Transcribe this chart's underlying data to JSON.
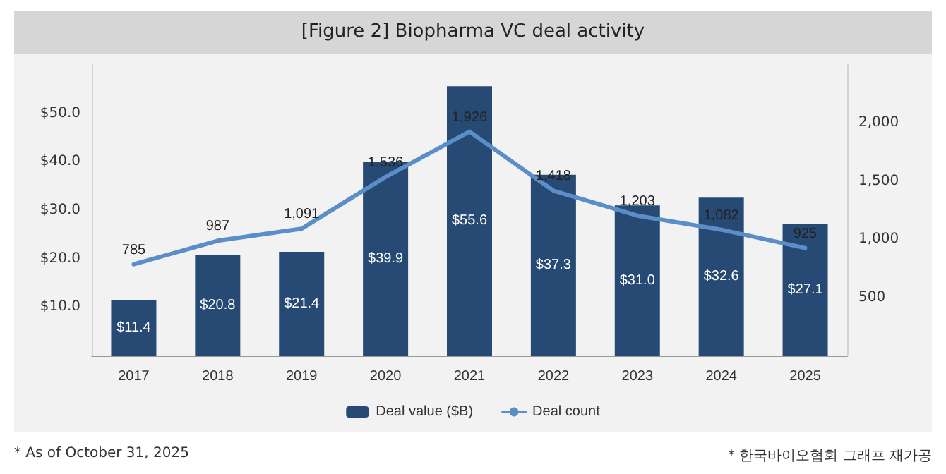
{
  "chart_data": {
    "type": "bar",
    "title": "[Figure 2] Biopharma VC deal activity",
    "categories": [
      "2017",
      "2018",
      "2019",
      "2020",
      "2021",
      "2022",
      "2023",
      "2024",
      "2025"
    ],
    "series": [
      {
        "name": "Deal value ($B)",
        "color": "#264a73",
        "values": [
          11.4,
          20.8,
          21.4,
          39.9,
          55.6,
          37.3,
          31.0,
          32.6,
          27.1
        ],
        "value_labels": [
          "$11.4",
          "$20.8",
          "$21.4",
          "$39.9",
          "$55.6",
          "$37.3",
          "$31.0",
          "$32.6",
          "$27.1"
        ]
      },
      {
        "name": "Deal count",
        "type": "line",
        "axis": "y2",
        "color": "#5b8ec8",
        "values": [
          785,
          987,
          1091,
          1536,
          1926,
          1418,
          1203,
          1082,
          925
        ],
        "value_labels": [
          "785",
          "987",
          "1,091",
          "1,536",
          "1,926",
          "1,418",
          "1,203",
          "1,082",
          "925"
        ]
      }
    ],
    "ylim": [
      0,
      60
    ],
    "yticks": [
      {
        "value": 10,
        "label": "$10.0"
      },
      {
        "value": 20,
        "label": "$20.0"
      },
      {
        "value": 30,
        "label": "$30.0"
      },
      {
        "value": 40,
        "label": "$40.0"
      },
      {
        "value": 50,
        "label": "$50.0"
      }
    ],
    "y2lim": [
      0,
      2500
    ],
    "y2ticks": [
      500,
      {
        "value": 1000,
        "label": "1,000"
      },
      {
        "value": 1500,
        "label": "1,500"
      },
      {
        "value": 2000,
        "label": "2,000"
      }
    ],
    "marker": "none",
    "grid": false,
    "legend": "bottom",
    "annotations": [
      "* As of October 31, 2025",
      "* 한국바이오협회 그래프 재가공"
    ]
  }
}
